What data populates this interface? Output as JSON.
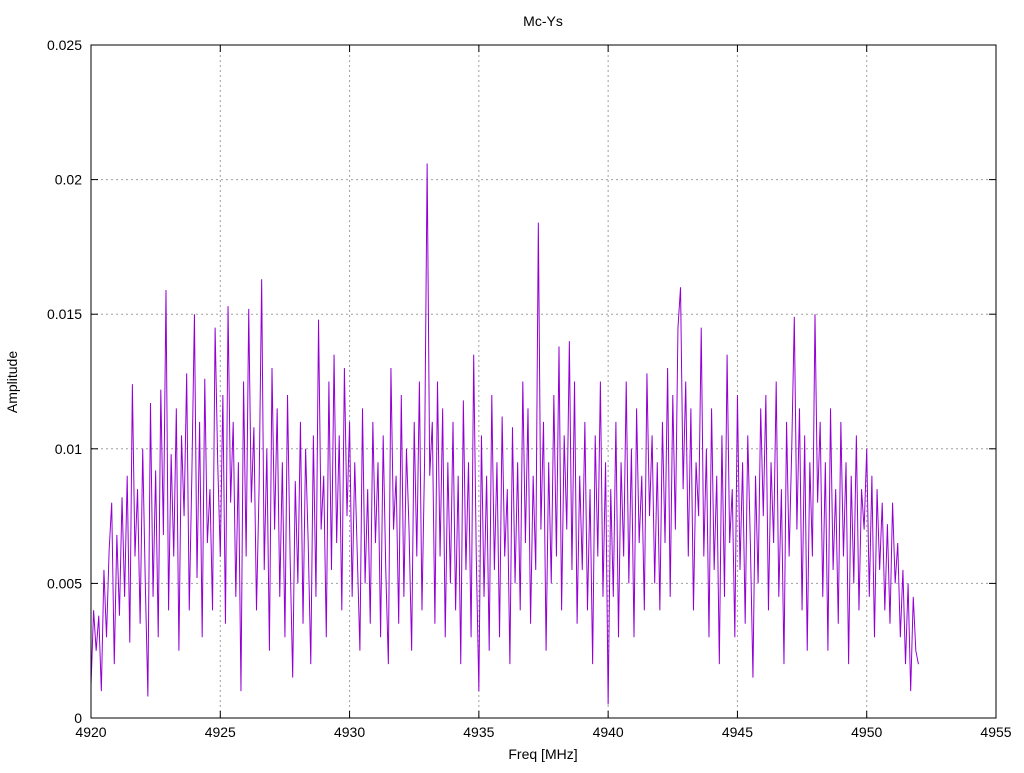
{
  "chart_data": {
    "type": "line",
    "title": "Mc-Ys",
    "xlabel": "Freq [MHz]",
    "ylabel": "Amplitude",
    "xlim": [
      4920,
      4955
    ],
    "ylim": [
      0,
      0.025
    ],
    "xticks": [
      4920,
      4925,
      4930,
      4935,
      4940,
      4945,
      4950,
      4955
    ],
    "xtick_labels": [
      "4920",
      "4925",
      "4930",
      "4935",
      "4940",
      "4945",
      "4950",
      "4955"
    ],
    "yticks": [
      0,
      0.005,
      0.01,
      0.015,
      0.02,
      0.025
    ],
    "ytick_labels": [
      "0",
      "0.005",
      "0.01",
      "0.015",
      "0.02",
      "0.025"
    ],
    "grid": true,
    "legend": "none",
    "series": [
      {
        "color": "#9400d3",
        "x": [
          4920.0,
          4920.1,
          4920.2,
          4920.3,
          4920.4,
          4920.5,
          4920.6,
          4920.7,
          4920.8,
          4920.9,
          4921.0,
          4921.1,
          4921.2,
          4921.3,
          4921.4,
          4921.5,
          4921.6,
          4921.7,
          4921.8,
          4921.9,
          4922.0,
          4922.1,
          4922.2,
          4922.3,
          4922.4,
          4922.5,
          4922.6,
          4922.7,
          4922.8,
          4922.9,
          4923.0,
          4923.1,
          4923.2,
          4923.3,
          4923.4,
          4923.5,
          4923.6,
          4923.7,
          4923.8,
          4923.9,
          4924.0,
          4924.1,
          4924.2,
          4924.3,
          4924.4,
          4924.5,
          4924.6,
          4924.7,
          4924.8,
          4924.9,
          4925.0,
          4925.1,
          4925.2,
          4925.3,
          4925.4,
          4925.5,
          4925.6,
          4925.7,
          4925.8,
          4925.9,
          4926.0,
          4926.1,
          4926.2,
          4926.3,
          4926.4,
          4926.5,
          4926.6,
          4926.7,
          4926.8,
          4926.9,
          4927.0,
          4927.1,
          4927.2,
          4927.3,
          4927.4,
          4927.5,
          4927.6,
          4927.7,
          4927.8,
          4927.9,
          4928.0,
          4928.1,
          4928.2,
          4928.3,
          4928.4,
          4928.5,
          4928.6,
          4928.7,
          4928.8,
          4928.9,
          4929.0,
          4929.1,
          4929.2,
          4929.3,
          4929.4,
          4929.5,
          4929.6,
          4929.7,
          4929.8,
          4929.9,
          4930.0,
          4930.1,
          4930.2,
          4930.3,
          4930.4,
          4930.5,
          4930.6,
          4930.7,
          4930.8,
          4930.9,
          4931.0,
          4931.1,
          4931.2,
          4931.3,
          4931.4,
          4931.5,
          4931.6,
          4931.7,
          4931.8,
          4931.9,
          4932.0,
          4932.1,
          4932.2,
          4932.3,
          4932.4,
          4932.5,
          4932.6,
          4932.7,
          4932.8,
          4932.9,
          4933.0,
          4933.1,
          4933.2,
          4933.3,
          4933.4,
          4933.5,
          4933.6,
          4933.7,
          4933.8,
          4933.9,
          4934.0,
          4934.1,
          4934.2,
          4934.3,
          4934.4,
          4934.5,
          4934.6,
          4934.7,
          4934.8,
          4934.9,
          4935.0,
          4935.1,
          4935.2,
          4935.3,
          4935.4,
          4935.5,
          4935.6,
          4935.7,
          4935.8,
          4935.9,
          4936.0,
          4936.1,
          4936.2,
          4936.3,
          4936.4,
          4936.5,
          4936.6,
          4936.7,
          4936.8,
          4936.9,
          4937.0,
          4937.1,
          4937.2,
          4937.3,
          4937.4,
          4937.5,
          4937.6,
          4937.7,
          4937.8,
          4937.9,
          4938.0,
          4938.1,
          4938.2,
          4938.3,
          4938.4,
          4938.5,
          4938.6,
          4938.7,
          4938.8,
          4938.9,
          4939.0,
          4939.1,
          4939.2,
          4939.3,
          4939.4,
          4939.5,
          4939.6,
          4939.7,
          4939.8,
          4939.9,
          4940.0,
          4940.1,
          4940.2,
          4940.3,
          4940.4,
          4940.5,
          4940.6,
          4940.7,
          4940.8,
          4940.9,
          4941.0,
          4941.1,
          4941.2,
          4941.3,
          4941.4,
          4941.5,
          4941.6,
          4941.7,
          4941.8,
          4941.9,
          4942.0,
          4942.1,
          4942.2,
          4942.3,
          4942.4,
          4942.5,
          4942.6,
          4942.7,
          4942.8,
          4942.9,
          4943.0,
          4943.1,
          4943.2,
          4943.3,
          4943.4,
          4943.5,
          4943.6,
          4943.7,
          4943.8,
          4943.9,
          4944.0,
          4944.1,
          4944.2,
          4944.3,
          4944.4,
          4944.5,
          4944.6,
          4944.7,
          4944.8,
          4944.9,
          4945.0,
          4945.1,
          4945.2,
          4945.3,
          4945.4,
          4945.5,
          4945.6,
          4945.7,
          4945.8,
          4945.9,
          4946.0,
          4946.1,
          4946.2,
          4946.3,
          4946.4,
          4946.5,
          4946.6,
          4946.7,
          4946.8,
          4946.9,
          4947.0,
          4947.1,
          4947.2,
          4947.3,
          4947.4,
          4947.5,
          4947.6,
          4947.7,
          4947.8,
          4947.9,
          4948.0,
          4948.1,
          4948.2,
          4948.3,
          4948.4,
          4948.5,
          4948.6,
          4948.7,
          4948.8,
          4948.9,
          4949.0,
          4949.1,
          4949.2,
          4949.3,
          4949.4,
          4949.5,
          4949.6,
          4949.7,
          4949.8,
          4949.9,
          4950.0,
          4950.1,
          4950.2,
          4950.3,
          4950.4,
          4950.5,
          4950.6,
          4950.7,
          4950.8,
          4950.9,
          4951.0,
          4951.1,
          4951.2,
          4951.3,
          4951.4,
          4951.5,
          4951.6,
          4951.7,
          4951.8,
          4951.9,
          4952.0
        ],
        "y": [
          0.0012,
          0.004,
          0.0025,
          0.0038,
          0.001,
          0.0055,
          0.003,
          0.0062,
          0.008,
          0.002,
          0.0068,
          0.0038,
          0.0082,
          0.0045,
          0.009,
          0.0028,
          0.0124,
          0.006,
          0.0085,
          0.0035,
          0.01,
          0.005,
          0.0008,
          0.0117,
          0.0045,
          0.0092,
          0.003,
          0.0122,
          0.0068,
          0.0159,
          0.004,
          0.0098,
          0.006,
          0.0115,
          0.0025,
          0.0105,
          0.0075,
          0.0128,
          0.004,
          0.009,
          0.015,
          0.0052,
          0.011,
          0.003,
          0.0126,
          0.0065,
          0.0085,
          0.004,
          0.0145,
          0.0095,
          0.006,
          0.012,
          0.0035,
          0.0153,
          0.008,
          0.011,
          0.0045,
          0.0095,
          0.001,
          0.0125,
          0.006,
          0.0152,
          0.008,
          0.0108,
          0.004,
          0.0085,
          0.0163,
          0.0055,
          0.01,
          0.0025,
          0.013,
          0.007,
          0.0115,
          0.0045,
          0.0095,
          0.003,
          0.012,
          0.006,
          0.0015,
          0.0088,
          0.005,
          0.011,
          0.0035,
          0.01,
          0.0065,
          0.002,
          0.0105,
          0.0045,
          0.0148,
          0.007,
          0.009,
          0.003,
          0.0125,
          0.0055,
          0.0135,
          0.0065,
          0.0105,
          0.004,
          0.013,
          0.0075,
          0.011,
          0.0045,
          0.0095,
          0.006,
          0.0025,
          0.0115,
          0.005,
          0.0085,
          0.0035,
          0.011,
          0.0065,
          0.0095,
          0.003,
          0.0105,
          0.0055,
          0.002,
          0.013,
          0.007,
          0.009,
          0.0035,
          0.012,
          0.0045,
          0.01,
          0.007,
          0.0025,
          0.011,
          0.006,
          0.0125,
          0.004,
          0.0095,
          0.0206,
          0.009,
          0.011,
          0.0035,
          0.0125,
          0.006,
          0.0115,
          0.003,
          0.0095,
          0.005,
          0.011,
          0.004,
          0.009,
          0.002,
          0.0118,
          0.0055,
          0.0095,
          0.003,
          0.0135,
          0.006,
          0.001,
          0.0105,
          0.0045,
          0.009,
          0.0025,
          0.012,
          0.0055,
          0.0095,
          0.003,
          0.0112,
          0.006,
          0.0085,
          0.002,
          0.0108,
          0.005,
          0.0095,
          0.004,
          0.0125,
          0.0065,
          0.0115,
          0.0035,
          0.009,
          0.0055,
          0.0184,
          0.007,
          0.011,
          0.0025,
          0.0095,
          0.005,
          0.012,
          0.006,
          0.0138,
          0.004,
          0.0105,
          0.007,
          0.014,
          0.0055,
          0.0125,
          0.0035,
          0.009,
          0.0055,
          0.011,
          0.004,
          0.0085,
          0.002,
          0.0105,
          0.006,
          0.0125,
          0.0045,
          0.0095,
          0.0005,
          0.0085,
          0.0045,
          0.011,
          0.003,
          0.0095,
          0.006,
          0.0125,
          0.005,
          0.01,
          0.003,
          0.0115,
          0.0065,
          0.009,
          0.004,
          0.0128,
          0.0075,
          0.0105,
          0.005,
          0.0095,
          0.004,
          0.011,
          0.0065,
          0.013,
          0.0045,
          0.012,
          0.007,
          0.0145,
          0.016,
          0.0085,
          0.0125,
          0.006,
          0.0115,
          0.004,
          0.0095,
          0.0075,
          0.0145,
          0.006,
          0.01,
          0.003,
          0.0115,
          0.0055,
          0.009,
          0.002,
          0.0105,
          0.0045,
          0.0135,
          0.0065,
          0.0085,
          0.003,
          0.012,
          0.0055,
          0.0095,
          0.0035,
          0.0105,
          0.0065,
          0.0015,
          0.009,
          0.005,
          0.0115,
          0.0075,
          0.012,
          0.004,
          0.0095,
          0.0065,
          0.0125,
          0.0045,
          0.0085,
          0.002,
          0.011,
          0.006,
          0.01,
          0.0149,
          0.007,
          0.0115,
          0.004,
          0.0105,
          0.0025,
          0.0095,
          0.006,
          0.015,
          0.008,
          0.011,
          0.0045,
          0.0095,
          0.0025,
          0.0115,
          0.0055,
          0.0085,
          0.0035,
          0.011,
          0.006,
          0.0095,
          0.002,
          0.009,
          0.005,
          0.0105,
          0.004,
          0.0085,
          0.007,
          0.01,
          0.0045,
          0.009,
          0.003,
          0.0085,
          0.0055,
          0.008,
          0.004,
          0.0072,
          0.0035,
          0.008,
          0.005,
          0.0065,
          0.003,
          0.0055,
          0.002,
          0.005,
          0.001,
          0.0045,
          0.0025,
          0.002
        ]
      }
    ]
  }
}
